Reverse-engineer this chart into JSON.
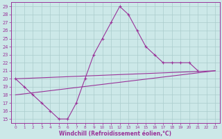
{
  "xlabel": "Windchill (Refroidissement éolien,°C)",
  "xlim": [
    -0.5,
    23.5
  ],
  "ylim": [
    14.5,
    29.5
  ],
  "xticks": [
    0,
    1,
    2,
    3,
    4,
    5,
    6,
    7,
    8,
    9,
    10,
    11,
    12,
    13,
    14,
    15,
    16,
    17,
    18,
    19,
    20,
    21,
    22,
    23
  ],
  "yticks": [
    15,
    16,
    17,
    18,
    19,
    20,
    21,
    22,
    23,
    24,
    25,
    26,
    27,
    28,
    29
  ],
  "bg_color": "#cce8e8",
  "line_color": "#993399",
  "grid_color": "#aacccc",
  "line1_y": [
    20,
    19,
    18,
    17,
    16,
    15,
    15,
    17,
    20,
    23,
    25,
    27,
    29,
    28,
    26,
    24,
    23,
    22,
    22,
    22,
    22,
    21,
    null,
    null
  ],
  "line2_y": [
    20,
    null,
    18,
    null,
    null,
    null,
    null,
    null,
    null,
    null,
    null,
    null,
    null,
    null,
    null,
    null,
    null,
    null,
    null,
    null,
    null,
    null,
    null,
    21
  ],
  "line3_y": [
    20,
    null,
    18,
    null,
    null,
    null,
    null,
    null,
    null,
    null,
    null,
    null,
    null,
    null,
    null,
    null,
    null,
    null,
    null,
    null,
    null,
    null,
    null,
    21
  ]
}
